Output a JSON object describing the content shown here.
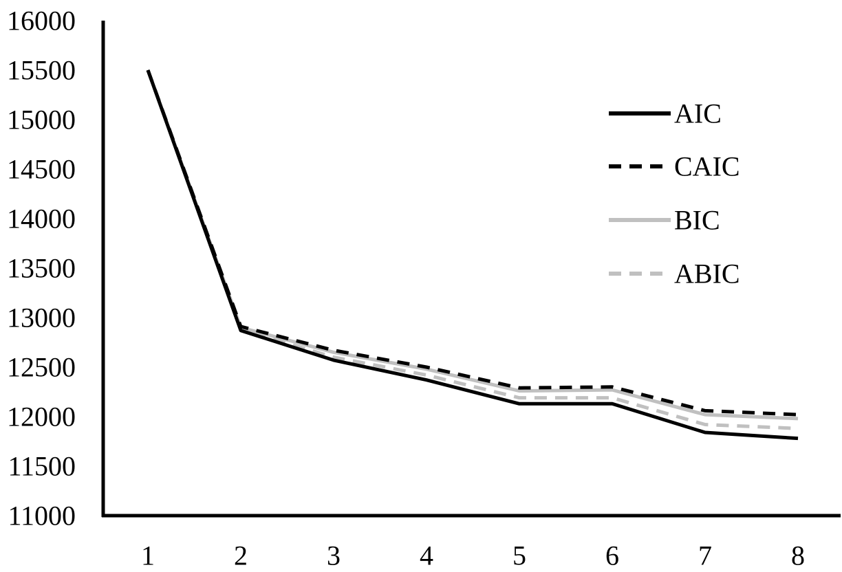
{
  "chart_data": {
    "type": "line",
    "title": "",
    "xlabel": "",
    "ylabel": "",
    "x": [
      1,
      2,
      3,
      4,
      5,
      6,
      7,
      8
    ],
    "ylim": [
      11000,
      16000
    ],
    "yticks": [
      11000,
      11500,
      12000,
      12500,
      13000,
      13500,
      14000,
      14500,
      15000,
      15500,
      16000
    ],
    "grid": false,
    "legend_position": "right",
    "series": [
      {
        "name": "AIC",
        "color": "#000000",
        "dash": "solid",
        "values": [
          15500,
          12870,
          12570,
          12370,
          12130,
          12130,
          11840,
          11780
        ]
      },
      {
        "name": "CAIC",
        "color": "#000000",
        "dash": "dashed",
        "values": [
          15500,
          12910,
          12670,
          12500,
          12290,
          12300,
          12060,
          12020
        ]
      },
      {
        "name": "BIC",
        "color": "#c0c0c0",
        "dash": "solid",
        "values": [
          15500,
          12900,
          12650,
          12480,
          12260,
          12270,
          12020,
          11980
        ]
      },
      {
        "name": "ABIC",
        "color": "#c0c0c0",
        "dash": "dashed",
        "values": [
          15500,
          12880,
          12600,
          12420,
          12190,
          12190,
          11920,
          11880
        ]
      }
    ]
  }
}
